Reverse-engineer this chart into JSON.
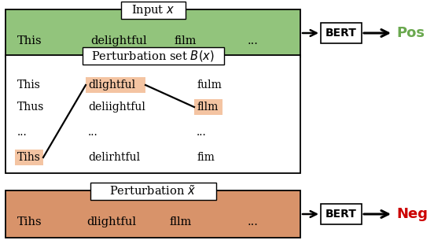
{
  "fig_width": 5.66,
  "fig_height": 3.1,
  "dpi": 100,
  "green_bg": "#92c47c",
  "orange_bg": "#d8936a",
  "highlight_orange": "#f4c4a2",
  "white": "#ffffff",
  "black": "#000000",
  "pos_color": "#6aa84f",
  "neg_color": "#cc0000",
  "box1_label": "Input $x$",
  "box1_words": [
    "This",
    "delightful",
    "film",
    "..."
  ],
  "box2_label": "Perturbation set $B(x)$",
  "box2_col1": [
    "This",
    "Thus",
    "...",
    "Tihs"
  ],
  "box2_col2": [
    "dlightful",
    "deliightful",
    "...",
    "delirhtful"
  ],
  "box2_col3": [
    "fulm",
    "fllm",
    "...",
    "fim"
  ],
  "box3_label": "Perturbation $\\tilde{x}$",
  "box3_words": [
    "Tihs",
    "dlightful",
    "fllm",
    "..."
  ],
  "bert_label": "BERT",
  "pos_label": "Pos",
  "neg_label": "Neg"
}
